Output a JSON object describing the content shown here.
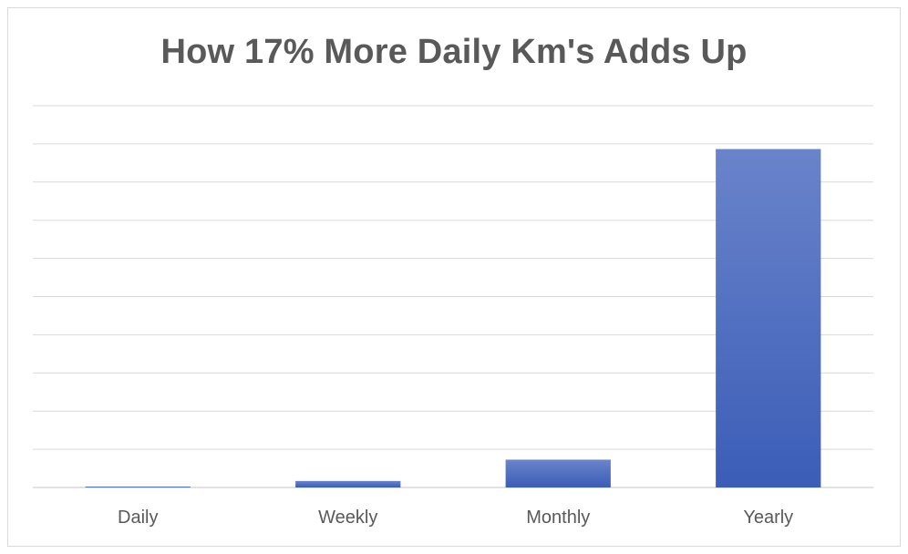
{
  "chart_data": {
    "type": "bar",
    "title": "How 17% More Daily Km's Adds Up",
    "xlabel": "",
    "ylabel": "",
    "categories": [
      "Daily",
      "Weekly",
      "Monthly",
      "Yearly"
    ],
    "values": [
      0.17,
      1.19,
      5.1,
      62.05
    ],
    "ylim": [
      0,
      70
    ],
    "grid": true,
    "legend": "none",
    "bar_color_top": "#6a84cb",
    "bar_color_bottom": "#3b5db7",
    "gridline_color": "#d9d9d9",
    "text_color": "#595959"
  }
}
